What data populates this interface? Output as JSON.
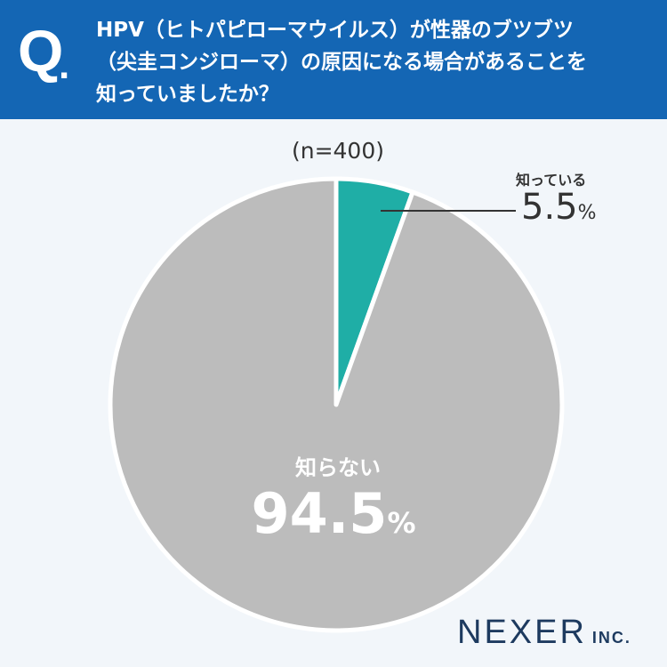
{
  "header": {
    "q_mark": "Q",
    "q_dot": ".",
    "question_lines": [
      "HPV（ヒトパピローマウイルス）が性器のブツブツ",
      "（尖圭コンジローマ）の原因になる場合があることを",
      "知っていましたか？"
    ]
  },
  "sample_size": "(n=400)",
  "colors": {
    "header": "#1466b4",
    "know": "#1faea6",
    "dont_know": "#bcbcbc",
    "background": "#f2f6fa"
  },
  "chart_data": {
    "type": "pie",
    "title": "HPV（ヒトパピローマウイルス）が性器のブツブツ（尖圭コンジローマ）の原因になる場合があることを知っていましたか？",
    "n": 400,
    "slices": [
      {
        "label": "知っている",
        "value": 5.5,
        "value_text": "5.5",
        "unit": "%",
        "color": "#1faea6"
      },
      {
        "label": "知らない",
        "value": 94.5,
        "value_text": "94.5",
        "unit": "%",
        "color": "#bcbcbc"
      }
    ],
    "start_angle": "12 o'clock",
    "direction": "clockwise"
  },
  "logo": {
    "main": "NEXER",
    "sub": "INC."
  }
}
